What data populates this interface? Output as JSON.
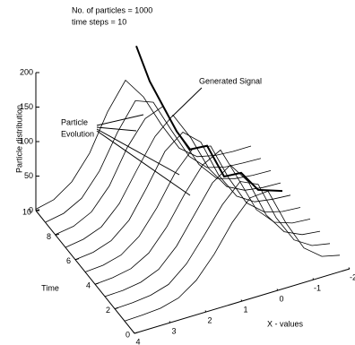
{
  "chart_data": {
    "type": "line3d",
    "header": [
      "No. of particles =  1000",
      "time steps = 10"
    ],
    "annotations": {
      "signal_label": "Generated Signal",
      "particle_label": [
        "Particle",
        "Evolution"
      ]
    },
    "xlabel": "X - values",
    "ylabel": "Time",
    "zlabel": "Particle distribution",
    "xlim": [
      -2,
      4
    ],
    "ylim": [
      0,
      10
    ],
    "zlim": [
      0,
      200
    ],
    "xticks": [
      4,
      3,
      2,
      1,
      0,
      -1,
      -2
    ],
    "yticks": [
      0,
      2,
      4,
      6,
      8,
      10
    ],
    "zticks": [
      0,
      50,
      100,
      150,
      200
    ],
    "x": [
      4,
      3.5,
      3,
      2.5,
      2,
      1.5,
      1,
      0.5,
      0,
      -0.5,
      -1,
      -1.5,
      -2
    ],
    "color": "#000000",
    "series": [
      {
        "time": 10,
        "values": [
          2,
          8,
          26,
          60,
          112,
          150,
          118,
          70,
          28,
          8,
          2,
          0,
          0
        ]
      },
      {
        "time": 9,
        "values": [
          1,
          6,
          20,
          52,
          100,
          138,
          128,
          80,
          34,
          10,
          3,
          1,
          0
        ]
      },
      {
        "time": 8,
        "values": [
          1,
          5,
          18,
          48,
          96,
          130,
          140,
          86,
          40,
          12,
          4,
          1,
          0
        ]
      },
      {
        "time": 7,
        "values": [
          0,
          4,
          14,
          40,
          82,
          122,
          145,
          104,
          52,
          18,
          5,
          1,
          0
        ]
      },
      {
        "time": 6,
        "values": [
          0,
          3,
          12,
          34,
          74,
          118,
          138,
          116,
          60,
          22,
          6,
          2,
          0
        ]
      },
      {
        "time": 5,
        "values": [
          0,
          2,
          9,
          28,
          62,
          104,
          132,
          128,
          74,
          30,
          9,
          2,
          0
        ]
      },
      {
        "time": 4,
        "values": [
          0,
          2,
          7,
          22,
          52,
          92,
          126,
          140,
          90,
          38,
          12,
          3,
          1
        ]
      },
      {
        "time": 3,
        "values": [
          0,
          1,
          5,
          16,
          42,
          80,
          118,
          136,
          104,
          48,
          16,
          4,
          1
        ]
      },
      {
        "time": 2,
        "values": [
          0,
          1,
          4,
          12,
          34,
          68,
          104,
          130,
          118,
          62,
          22,
          6,
          1
        ]
      },
      {
        "time": 1,
        "values": [
          0,
          1,
          3,
          10,
          28,
          58,
          96,
          124,
          126,
          72,
          28,
          8,
          2
        ]
      }
    ],
    "signal": {
      "time": [
        10,
        9,
        8,
        7,
        6,
        5,
        4,
        3,
        2,
        1
      ],
      "x": [
        1.2,
        1.1,
        1.0,
        0.9,
        0.8,
        0.6,
        0.4,
        0.2,
        0,
        -0.4
      ],
      "values": [
        195,
        160,
        140,
        120,
        110,
        130,
        100,
        120,
        110,
        120
      ]
    }
  }
}
